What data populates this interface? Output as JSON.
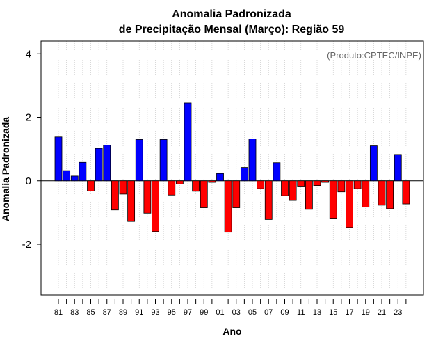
{
  "chart_data": {
    "type": "bar",
    "title_line1": "Anomalia Padronizada",
    "title_line2": "de Precipitação Mensal (Março): Região 59",
    "xlabel": "Ano",
    "ylabel": "Anomalia Padronizada",
    "annotation": "(Produto:CPTEC/INPE)",
    "ylim": [
      -3.6,
      4.4
    ],
    "yticks": [
      -2,
      0,
      2,
      4
    ],
    "yticklabels": [
      "-2",
      "0",
      "2",
      "4"
    ],
    "grid": "vertical dotted",
    "positive_color": "#0000ff",
    "negative_color": "#ff0000",
    "x_tick_labels": [
      "81",
      "83",
      "85",
      "87",
      "89",
      "91",
      "93",
      "95",
      "97",
      "99",
      "01",
      "03",
      "05",
      "07",
      "09",
      "11",
      "13",
      "15",
      "17",
      "19",
      "21",
      "23"
    ],
    "categories": [
      "1981",
      "1982",
      "1983",
      "1984",
      "1985",
      "1986",
      "1987",
      "1988",
      "1989",
      "1990",
      "1991",
      "1992",
      "1993",
      "1994",
      "1995",
      "1996",
      "1997",
      "1998",
      "1999",
      "2000",
      "2001",
      "2002",
      "2003",
      "2004",
      "2005",
      "2006",
      "2007",
      "2008",
      "2009",
      "2010",
      "2011",
      "2012",
      "2013",
      "2014",
      "2015",
      "2016",
      "2017",
      "2018",
      "2019",
      "2020",
      "2021",
      "2022",
      "2023",
      "2024"
    ],
    "values": [
      1.38,
      0.32,
      0.15,
      0.58,
      -0.32,
      1.02,
      1.12,
      -0.92,
      -0.42,
      -1.28,
      1.3,
      -1.02,
      -1.6,
      1.3,
      -0.45,
      -0.1,
      2.45,
      -0.33,
      -0.85,
      -0.05,
      0.23,
      -1.62,
      -0.85,
      0.42,
      1.32,
      -0.25,
      -1.22,
      0.57,
      -0.47,
      -0.62,
      -0.17,
      -0.9,
      -0.15,
      -0.05,
      -1.18,
      -0.35,
      -1.47,
      -0.25,
      -0.83,
      1.1,
      -0.77,
      -0.88,
      0.83,
      -0.73
    ]
  }
}
